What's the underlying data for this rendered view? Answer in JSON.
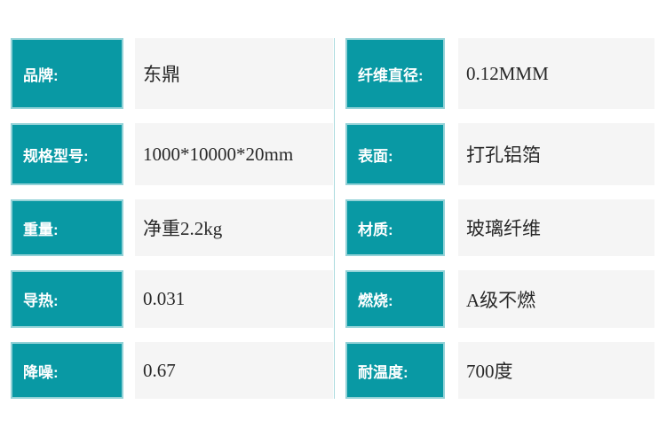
{
  "colors": {
    "page_bg": "#ffffff",
    "label_bg": "#0999a4",
    "label_text": "#ffffff",
    "label_border": "#93d2d7",
    "value_bg": "#f5f5f5",
    "value_text": "#282828",
    "separator": "#aadade"
  },
  "spec_table": {
    "left_column": {
      "rows": [
        {
          "label": "品牌:",
          "value": "东鼎"
        },
        {
          "label": "规格型号:",
          "value": "1000*10000*20mm"
        },
        {
          "label": "重量:",
          "value": "净重2.2kg"
        },
        {
          "label": "导热:",
          "value": "0.031"
        },
        {
          "label": "降噪:",
          "value": "0.67"
        }
      ]
    },
    "right_column": {
      "rows": [
        {
          "label": "纤维直径:",
          "value": "0.12MMM"
        },
        {
          "label": "表面:",
          "value": "打孔铝箔"
        },
        {
          "label": "材质:",
          "value": "玻璃纤维"
        },
        {
          "label": "燃烧:",
          "value": "A级不燃"
        },
        {
          "label": "耐温度:",
          "value": "700度"
        }
      ]
    }
  }
}
